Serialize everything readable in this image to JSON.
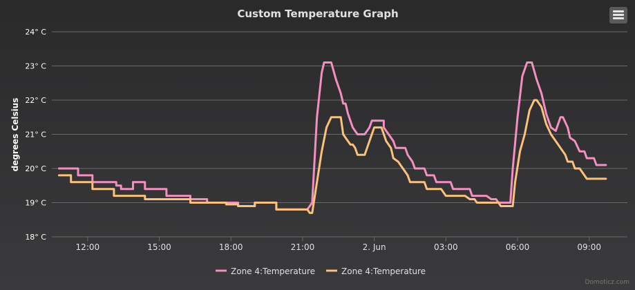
{
  "colors": {
    "background": "#2d2d2f",
    "grid": "#6a6a6a",
    "text": "#e0e0e3",
    "series1": "#f48fc1",
    "series2": "#fcc27c"
  },
  "toolbar": {
    "menu_icon": "hamburger-menu-icon"
  },
  "credit": "Domoticz.com",
  "chart_data": {
    "type": "line",
    "title": "Custom Temperature Graph",
    "ylabel": "degrees Celsius",
    "ylim": [
      18,
      24
    ],
    "yticks": [
      {
        "value": 18,
        "label": "18° C"
      },
      {
        "value": 19,
        "label": "19° C"
      },
      {
        "value": 20,
        "label": "20° C"
      },
      {
        "value": 21,
        "label": "21° C"
      },
      {
        "value": 22,
        "label": "22° C"
      },
      {
        "value": 23,
        "label": "23° C"
      },
      {
        "value": 24,
        "label": "24° C"
      }
    ],
    "xlim": [
      10.5,
      34.6
    ],
    "xticks": [
      {
        "value": 12,
        "label": "12:00"
      },
      {
        "value": 15,
        "label": "15:00"
      },
      {
        "value": 18,
        "label": "18:00"
      },
      {
        "value": 21,
        "label": "21:00"
      },
      {
        "value": 24,
        "label": "2. Jun"
      },
      {
        "value": 27,
        "label": "03:00"
      },
      {
        "value": 30,
        "label": "06:00"
      },
      {
        "value": 33,
        "label": "09:00"
      }
    ],
    "grid": true,
    "legend_position": "bottom-center",
    "series": [
      {
        "name": "Zone 4:Temperature",
        "color": "#f48fc1",
        "points": [
          [
            10.8,
            20.0
          ],
          [
            11.6,
            20.0
          ],
          [
            11.6,
            19.8
          ],
          [
            12.2,
            19.8
          ],
          [
            12.2,
            19.6
          ],
          [
            13.2,
            19.6
          ],
          [
            13.2,
            19.5
          ],
          [
            13.4,
            19.5
          ],
          [
            13.4,
            19.4
          ],
          [
            13.9,
            19.4
          ],
          [
            13.9,
            19.6
          ],
          [
            14.4,
            19.6
          ],
          [
            14.4,
            19.4
          ],
          [
            15.3,
            19.4
          ],
          [
            15.3,
            19.2
          ],
          [
            16.3,
            19.2
          ],
          [
            16.3,
            19.1
          ],
          [
            17.0,
            19.1
          ],
          [
            17.0,
            19.0
          ],
          [
            18.3,
            19.0
          ],
          [
            18.3,
            18.9
          ],
          [
            19.0,
            18.9
          ],
          [
            19.0,
            19.0
          ],
          [
            19.9,
            19.0
          ],
          [
            19.9,
            18.8
          ],
          [
            21.2,
            18.8
          ],
          [
            21.4,
            19.0
          ],
          [
            21.6,
            21.5
          ],
          [
            21.8,
            22.8
          ],
          [
            21.9,
            23.1
          ],
          [
            22.2,
            23.1
          ],
          [
            22.4,
            22.6
          ],
          [
            22.6,
            22.2
          ],
          [
            22.7,
            21.9
          ],
          [
            22.8,
            21.9
          ],
          [
            22.9,
            21.6
          ],
          [
            23.1,
            21.2
          ],
          [
            23.3,
            21.0
          ],
          [
            23.6,
            21.0
          ],
          [
            23.8,
            21.2
          ],
          [
            23.9,
            21.4
          ],
          [
            24.4,
            21.4
          ],
          [
            24.4,
            21.2
          ],
          [
            24.6,
            21.0
          ],
          [
            24.8,
            20.8
          ],
          [
            24.9,
            20.6
          ],
          [
            25.3,
            20.6
          ],
          [
            25.4,
            20.4
          ],
          [
            25.6,
            20.2
          ],
          [
            25.7,
            20.0
          ],
          [
            26.1,
            20.0
          ],
          [
            26.2,
            19.8
          ],
          [
            26.5,
            19.8
          ],
          [
            26.6,
            19.6
          ],
          [
            27.2,
            19.6
          ],
          [
            27.3,
            19.4
          ],
          [
            28.0,
            19.4
          ],
          [
            28.1,
            19.2
          ],
          [
            28.7,
            19.2
          ],
          [
            28.9,
            19.1
          ],
          [
            29.1,
            19.1
          ],
          [
            29.2,
            19.0
          ],
          [
            29.7,
            19.0
          ],
          [
            29.8,
            20.0
          ],
          [
            30.0,
            21.5
          ],
          [
            30.2,
            22.7
          ],
          [
            30.4,
            23.1
          ],
          [
            30.6,
            23.1
          ],
          [
            30.8,
            22.6
          ],
          [
            31.0,
            22.2
          ],
          [
            31.2,
            21.6
          ],
          [
            31.4,
            21.2
          ],
          [
            31.6,
            21.1
          ],
          [
            31.8,
            21.5
          ],
          [
            31.9,
            21.5
          ],
          [
            32.1,
            21.2
          ],
          [
            32.2,
            20.9
          ],
          [
            32.4,
            20.8
          ],
          [
            32.6,
            20.5
          ],
          [
            32.8,
            20.5
          ],
          [
            32.9,
            20.3
          ],
          [
            33.2,
            20.3
          ],
          [
            33.3,
            20.1
          ],
          [
            33.7,
            20.1
          ]
        ]
      },
      {
        "name": "Zone 4:Temperature",
        "color": "#fcc27c",
        "points": [
          [
            10.8,
            19.8
          ],
          [
            11.3,
            19.8
          ],
          [
            11.3,
            19.6
          ],
          [
            12.2,
            19.6
          ],
          [
            12.2,
            19.4
          ],
          [
            13.1,
            19.4
          ],
          [
            13.1,
            19.2
          ],
          [
            14.4,
            19.2
          ],
          [
            14.4,
            19.1
          ],
          [
            16.3,
            19.1
          ],
          [
            16.3,
            19.0
          ],
          [
            17.8,
            19.0
          ],
          [
            17.8,
            18.95
          ],
          [
            18.3,
            18.95
          ],
          [
            18.3,
            18.9
          ],
          [
            19.0,
            18.9
          ],
          [
            19.0,
            19.0
          ],
          [
            19.9,
            19.0
          ],
          [
            19.9,
            18.8
          ],
          [
            21.2,
            18.8
          ],
          [
            21.3,
            18.7
          ],
          [
            21.4,
            18.7
          ],
          [
            21.6,
            19.6
          ],
          [
            21.8,
            20.5
          ],
          [
            22.0,
            21.2
          ],
          [
            22.2,
            21.5
          ],
          [
            22.6,
            21.5
          ],
          [
            22.7,
            21.0
          ],
          [
            22.8,
            20.9
          ],
          [
            23.0,
            20.7
          ],
          [
            23.1,
            20.7
          ],
          [
            23.2,
            20.6
          ],
          [
            23.3,
            20.4
          ],
          [
            23.6,
            20.4
          ],
          [
            23.8,
            20.8
          ],
          [
            24.0,
            21.2
          ],
          [
            24.3,
            21.2
          ],
          [
            24.5,
            20.8
          ],
          [
            24.7,
            20.6
          ],
          [
            24.8,
            20.3
          ],
          [
            25.0,
            20.2
          ],
          [
            25.2,
            20.0
          ],
          [
            25.4,
            19.8
          ],
          [
            25.5,
            19.6
          ],
          [
            26.1,
            19.6
          ],
          [
            26.2,
            19.4
          ],
          [
            26.8,
            19.4
          ],
          [
            27.0,
            19.2
          ],
          [
            27.8,
            19.2
          ],
          [
            28.0,
            19.1
          ],
          [
            28.2,
            19.1
          ],
          [
            28.3,
            19.0
          ],
          [
            29.2,
            19.0
          ],
          [
            29.3,
            18.9
          ],
          [
            29.8,
            18.9
          ],
          [
            29.9,
            19.6
          ],
          [
            30.1,
            20.5
          ],
          [
            30.3,
            21.0
          ],
          [
            30.5,
            21.7
          ],
          [
            30.7,
            22.0
          ],
          [
            30.8,
            22.0
          ],
          [
            31.0,
            21.8
          ],
          [
            31.2,
            21.3
          ],
          [
            31.4,
            21.0
          ],
          [
            31.6,
            20.8
          ],
          [
            31.8,
            20.6
          ],
          [
            32.0,
            20.4
          ],
          [
            32.1,
            20.2
          ],
          [
            32.3,
            20.2
          ],
          [
            32.4,
            20.0
          ],
          [
            32.6,
            20.0
          ],
          [
            32.8,
            19.8
          ],
          [
            32.9,
            19.7
          ],
          [
            33.7,
            19.7
          ]
        ]
      }
    ]
  }
}
